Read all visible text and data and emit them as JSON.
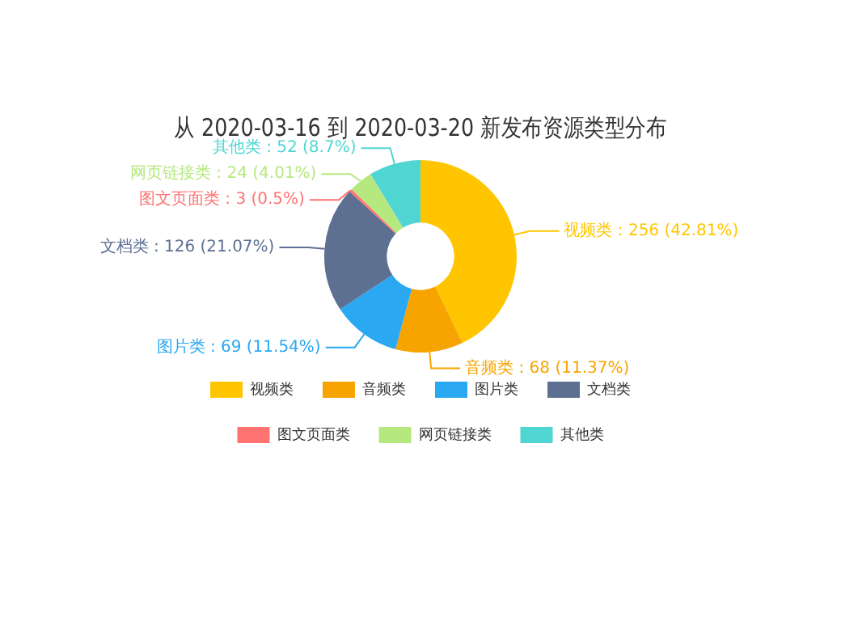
{
  "chart_data": {
    "type": "donut",
    "title": "从 2020-03-16 到 2020-03-20 新发布资源类型分布",
    "categories": [
      "视频类",
      "音频类",
      "图片类",
      "文档类",
      "图文页面类",
      "网页链接类",
      "其他类"
    ],
    "values": [
      256,
      68,
      69,
      126,
      3,
      24,
      52
    ],
    "colors": [
      "#ffc600",
      "#f7a400",
      "#2aa8f2",
      "#5d7092",
      "#ff7373",
      "#b6e880",
      "#4fd6d2"
    ],
    "value_labels": [
      "视频类 : 256 (42.81%)",
      "音频类 : 68 (11.37%)",
      "图片类 : 69 (11.54%)",
      "文档类 : 126 (21.07%)",
      "图文页面类 : 3 (0.5%)",
      "网页链接类 : 24 (4.01%)",
      "其他类 : 52 (8.7%)"
    ],
    "legend": "bottom"
  }
}
